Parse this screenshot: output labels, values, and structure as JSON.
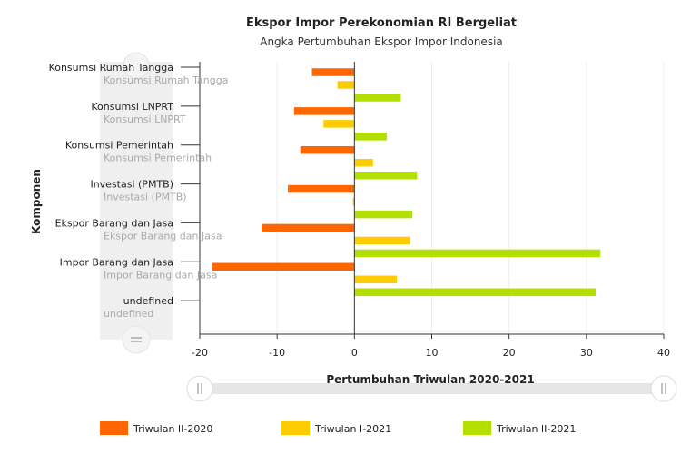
{
  "colors": {
    "series": [
      "#ff6600",
      "#ffcc00",
      "#b3e000"
    ],
    "grid": "#eeeeee",
    "axis": "#333333"
  },
  "chart_data": {
    "type": "bar",
    "orientation": "horizontal",
    "title": "Ekspor Impor Perekonomian RI Bergeliat",
    "subtitle": "Angka Pertumbuhan Ekspor Impor Indonesia",
    "xlabel": "Pertumbuhan Triwulan 2020-2021",
    "ylabel": "Komponen",
    "xlim": [
      -20,
      40
    ],
    "xticks": [
      -20,
      -10,
      0,
      10,
      20,
      30,
      40
    ],
    "grid": true,
    "legend_position": "bottom",
    "categories": [
      "Konsumsi Rumah Tangga",
      "Konsumsi LNPRT",
      "Konsumsi Pemerintah",
      "Investasi (PMTB)",
      "Ekspor Barang dan Jasa",
      "Impor Barang dan Jasa",
      "undefined"
    ],
    "series": [
      {
        "name": "Triwulan II-2020",
        "values": [
          -5.5,
          -7.8,
          -7.0,
          -8.6,
          -12.0,
          -18.4,
          null
        ]
      },
      {
        "name": "Triwulan I-2021",
        "values": [
          -2.2,
          -4.0,
          2.4,
          -0.2,
          7.2,
          5.5,
          null
        ]
      },
      {
        "name": "Triwulan II-2021",
        "values": [
          6.0,
          4.2,
          8.1,
          7.5,
          31.8,
          31.2,
          null
        ]
      }
    ]
  }
}
